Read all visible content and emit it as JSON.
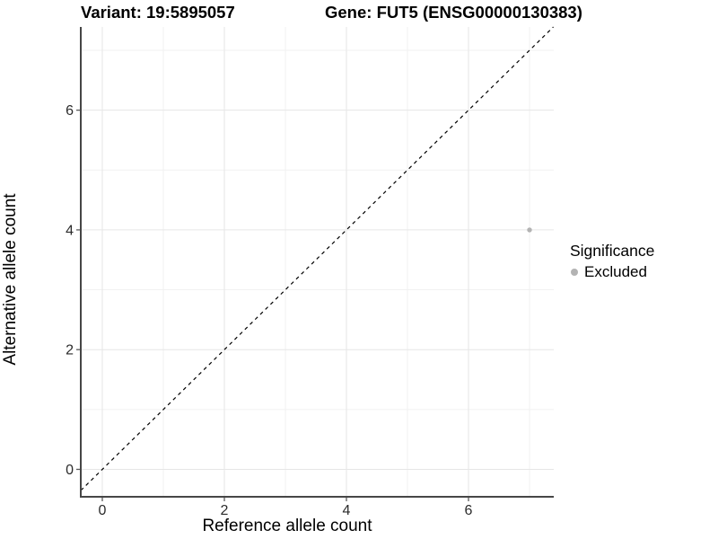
{
  "titles": {
    "left": "Variant: 19:5895057",
    "right": "Gene: FUT5 (ENSG00000130383)"
  },
  "chart_data": {
    "type": "scatter",
    "xlabel": "Reference allele count",
    "ylabel": "Alternative allele count",
    "x_ticks": [
      0,
      2,
      4,
      6
    ],
    "y_ticks": [
      0,
      2,
      4,
      6
    ],
    "x_minor_gridlines": [
      1,
      3,
      5,
      7
    ],
    "y_minor_gridlines": [
      1,
      3,
      5,
      7
    ],
    "xlim": [
      -0.353,
      7.397
    ],
    "ylim": [
      -0.458,
      7.39
    ],
    "grid": "major+minor",
    "series": [
      {
        "name": "Excluded",
        "points": [
          {
            "x": 7,
            "y": 4
          }
        ],
        "color": "#b3b3b3"
      }
    ],
    "identity_line": {
      "slope": 1,
      "intercept": 0,
      "style": "dashed",
      "color": "#000000"
    },
    "legend": {
      "title": "Significance",
      "position": "right",
      "entries": [
        {
          "label": "Excluded",
          "color": "#b3b3b3"
        }
      ]
    }
  },
  "colors": {
    "background": "#ffffff",
    "axis_line": "#464646",
    "tick_mark": "#5a5a5a",
    "tick_label": "#2b2b2b",
    "grid_major": "#e6e6e6",
    "grid_minor": "#f1f1f1",
    "point": "#b3b3b3"
  }
}
